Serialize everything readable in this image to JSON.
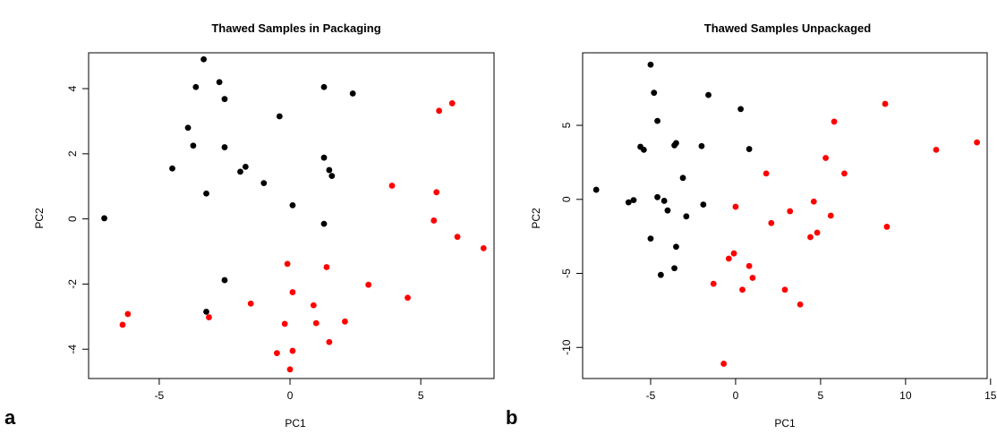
{
  "chart_data": [
    {
      "type": "scatter",
      "panel_label": "a",
      "title": "Thawed Samples in Packaging",
      "xlabel": "PC1",
      "ylabel": "PC2",
      "xlim": [
        -7.7,
        7.8
      ],
      "ylim": [
        -4.9,
        5.1
      ],
      "xticks": [
        -5,
        0,
        5
      ],
      "yticks": [
        -4,
        -2,
        0,
        2,
        4
      ],
      "grid": false,
      "legend": "none",
      "series": [
        {
          "color": "#000000",
          "points": [
            [
              -7.1,
              0.02
            ],
            [
              -4.5,
              1.55
            ],
            [
              -3.9,
              2.8
            ],
            [
              -3.7,
              2.25
            ],
            [
              -3.6,
              4.05
            ],
            [
              -3.3,
              4.9
            ],
            [
              -3.2,
              0.78
            ],
            [
              -3.2,
              -2.85
            ],
            [
              -2.7,
              4.2
            ],
            [
              -2.5,
              3.68
            ],
            [
              -2.5,
              2.2
            ],
            [
              -2.5,
              -1.88
            ],
            [
              -1.9,
              1.45
            ],
            [
              -1.7,
              1.6
            ],
            [
              -1.0,
              1.1
            ],
            [
              -0.4,
              3.15
            ],
            [
              0.1,
              0.42
            ],
            [
              1.3,
              4.05
            ],
            [
              1.3,
              1.88
            ],
            [
              1.3,
              -0.15
            ],
            [
              1.5,
              1.5
            ],
            [
              1.6,
              1.32
            ],
            [
              2.4,
              3.85
            ]
          ]
        },
        {
          "color": "#ff0000",
          "points": [
            [
              -6.4,
              -3.25
            ],
            [
              -6.2,
              -2.92
            ],
            [
              -3.1,
              -3.02
            ],
            [
              -1.5,
              -2.6
            ],
            [
              -0.5,
              -4.12
            ],
            [
              -0.2,
              -3.22
            ],
            [
              -0.1,
              -1.38
            ],
            [
              0.0,
              -4.62
            ],
            [
              0.1,
              -4.05
            ],
            [
              0.1,
              -2.25
            ],
            [
              0.9,
              -2.65
            ],
            [
              1.0,
              -3.2
            ],
            [
              1.4,
              -1.48
            ],
            [
              1.5,
              -3.78
            ],
            [
              2.1,
              -3.15
            ],
            [
              3.0,
              -2.02
            ],
            [
              3.9,
              1.02
            ],
            [
              4.5,
              -2.42
            ],
            [
              5.5,
              -0.05
            ],
            [
              5.6,
              0.82
            ],
            [
              5.7,
              3.32
            ],
            [
              6.2,
              3.55
            ],
            [
              6.4,
              -0.55
            ],
            [
              7.4,
              -0.9
            ]
          ]
        }
      ]
    },
    {
      "type": "scatter",
      "panel_label": "b",
      "title": "Thawed Samples Unpackaged",
      "xlabel": "PC1",
      "ylabel": "PC2",
      "xlim": [
        -9.0,
        14.8
      ],
      "ylim": [
        -12.1,
        9.9
      ],
      "xticks": [
        -5,
        0,
        5,
        10,
        15
      ],
      "yticks": [
        -10,
        -5,
        0,
        5
      ],
      "grid": false,
      "legend": "none",
      "series": [
        {
          "color": "#000000",
          "points": [
            [
              -8.2,
              0.65
            ],
            [
              -6.3,
              -0.2
            ],
            [
              -6.0,
              -0.05
            ],
            [
              -5.6,
              3.55
            ],
            [
              -5.4,
              3.35
            ],
            [
              -5.0,
              9.1
            ],
            [
              -5.0,
              -2.65
            ],
            [
              -4.8,
              7.2
            ],
            [
              -4.6,
              5.3
            ],
            [
              -4.6,
              0.15
            ],
            [
              -4.4,
              -5.1
            ],
            [
              -4.2,
              -0.1
            ],
            [
              -4.0,
              -0.75
            ],
            [
              -3.6,
              3.65
            ],
            [
              -3.6,
              -4.65
            ],
            [
              -3.5,
              3.8
            ],
            [
              -3.5,
              -3.2
            ],
            [
              -3.1,
              1.45
            ],
            [
              -2.9,
              -1.15
            ],
            [
              -2.0,
              3.6
            ],
            [
              -1.9,
              -0.35
            ],
            [
              -1.6,
              7.05
            ],
            [
              0.3,
              6.1
            ],
            [
              0.8,
              3.4
            ]
          ]
        },
        {
          "color": "#ff0000",
          "points": [
            [
              -1.3,
              -5.7
            ],
            [
              -0.7,
              -11.1
            ],
            [
              -0.4,
              -4.0
            ],
            [
              -0.1,
              -3.65
            ],
            [
              0.0,
              -0.5
            ],
            [
              0.4,
              -6.1
            ],
            [
              0.8,
              -4.5
            ],
            [
              1.0,
              -5.3
            ],
            [
              1.8,
              1.75
            ],
            [
              2.1,
              -1.6
            ],
            [
              2.9,
              -6.1
            ],
            [
              3.2,
              -0.8
            ],
            [
              3.8,
              -7.1
            ],
            [
              4.4,
              -2.55
            ],
            [
              4.6,
              -0.15
            ],
            [
              4.8,
              -2.25
            ],
            [
              5.3,
              2.8
            ],
            [
              5.6,
              -1.1
            ],
            [
              5.8,
              5.25
            ],
            [
              6.4,
              1.75
            ],
            [
              8.8,
              6.45
            ],
            [
              8.9,
              -1.85
            ],
            [
              11.8,
              3.35
            ],
            [
              14.2,
              3.85
            ]
          ]
        }
      ]
    }
  ]
}
